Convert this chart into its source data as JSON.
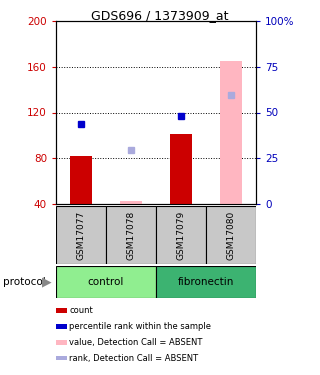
{
  "title": "GDS696 / 1373909_at",
  "samples": [
    "GSM17077",
    "GSM17078",
    "GSM17079",
    "GSM17080"
  ],
  "ylim_left": [
    40,
    200
  ],
  "yticks_left": [
    40,
    80,
    120,
    160,
    200
  ],
  "ytick_labels_right": [
    "0",
    "25",
    "50",
    "75",
    "100%"
  ],
  "red_bar_values": [
    82,
    null,
    101,
    null
  ],
  "pink_bar_values": [
    null,
    43,
    null,
    165
  ],
  "blue_square_values": [
    110,
    null,
    117,
    null
  ],
  "lavender_square_values": [
    null,
    87,
    null,
    135
  ],
  "bar_width": 0.45,
  "red_color": "#CC0000",
  "pink_color": "#FFB6C1",
  "blue_color": "#0000CC",
  "lavender_color": "#AAAADD",
  "sample_label_bg": "#C8C8C8",
  "left_axis_color": "#CC0000",
  "right_axis_color": "#0000BB",
  "ctrl_color": "#90EE90",
  "fib_color": "#3CB371"
}
